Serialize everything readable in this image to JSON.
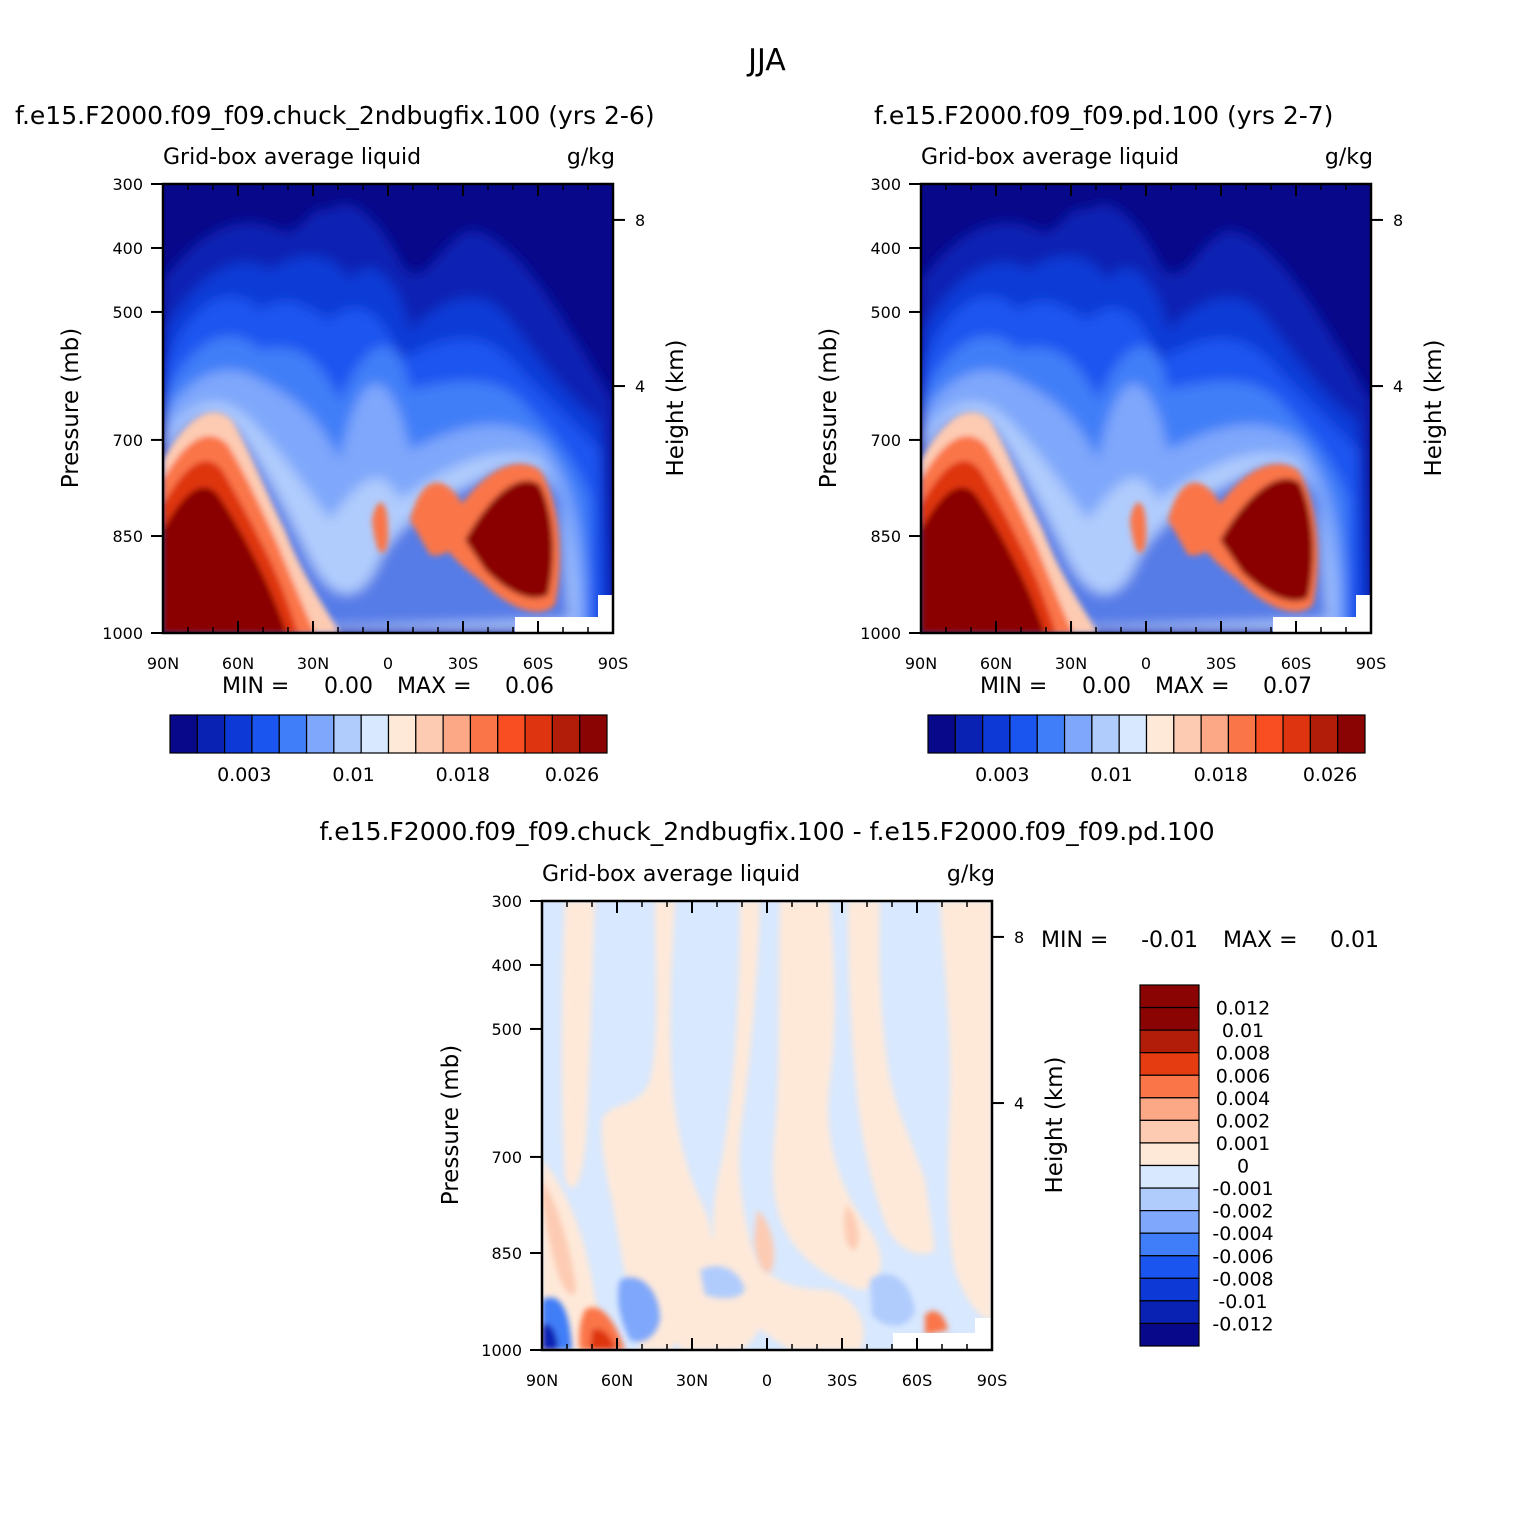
{
  "title": "JJA",
  "colors": {
    "palette12": [
      "#08088a",
      "#0a22b4",
      "#0d3ad6",
      "#1b55f0",
      "#3f7ef8",
      "#7fa7fb",
      "#b0ccfd",
      "#d8e8fe",
      "#fee9d9",
      "#fdcbb2",
      "#fca785",
      "#fa7649",
      "#f84e22",
      "#de3410",
      "#b11d08",
      "#8a0404"
    ],
    "diff": [
      "#08088a",
      "#0a22b4",
      "#0d3ad6",
      "#1b55f0",
      "#3f7ef8",
      "#7fa7fb",
      "#b0ccfd",
      "#d8e8fe",
      "#fee9d9",
      "#fdcbb2",
      "#fca785",
      "#fa7649",
      "#e63c12",
      "#b11d08",
      "#8a0404"
    ]
  },
  "chart_data": [
    {
      "type": "heatmap",
      "title": "f.e15.F2000.f09_f09.chuck_2ndbugfix.100 (yrs 2-6)",
      "subtitle_left": "Grid-box average liquid",
      "subtitle_right": "g/kg",
      "ylabel": "Pressure (mb)",
      "ylabel_right": "Height (km)",
      "x_ticks": [
        "90N",
        "60N",
        "30N",
        "0",
        "30S",
        "60S",
        "90S"
      ],
      "y_ticks": [
        "300",
        "400",
        "500",
        "700",
        "850",
        "1000"
      ],
      "y_ticks_right": [
        "8",
        "4"
      ],
      "stats": {
        "min_label": "MIN =",
        "min": "0.00",
        "max_label": "MAX =",
        "max": "0.06"
      },
      "colorbar_labels": [
        "0.003",
        "0.01",
        "0.018",
        "0.026"
      ],
      "xlim": [
        90,
        -90
      ],
      "ylim": [
        300,
        1000
      ]
    },
    {
      "type": "heatmap",
      "title": "f.e15.F2000.f09_f09.pd.100 (yrs 2-7)",
      "subtitle_left": "Grid-box average liquid",
      "subtitle_right": "g/kg",
      "ylabel": "Pressure (mb)",
      "ylabel_right": "Height (km)",
      "x_ticks": [
        "90N",
        "60N",
        "30N",
        "0",
        "30S",
        "60S",
        "90S"
      ],
      "y_ticks": [
        "300",
        "400",
        "500",
        "700",
        "850",
        "1000"
      ],
      "y_ticks_right": [
        "8",
        "4"
      ],
      "stats": {
        "min_label": "MIN =",
        "min": "0.00",
        "max_label": "MAX =",
        "max": "0.07"
      },
      "colorbar_labels": [
        "0.003",
        "0.01",
        "0.018",
        "0.026"
      ],
      "xlim": [
        90,
        -90
      ],
      "ylim": [
        300,
        1000
      ]
    },
    {
      "type": "heatmap",
      "title": "f.e15.F2000.f09_f09.chuck_2ndbugfix.100 - f.e15.F2000.f09_f09.pd.100",
      "subtitle_left": "Grid-box average liquid",
      "subtitle_right": "g/kg",
      "ylabel": "Pressure (mb)",
      "ylabel_right": "Height (km)",
      "x_ticks": [
        "90N",
        "60N",
        "30N",
        "0",
        "30S",
        "60S",
        "90S"
      ],
      "y_ticks": [
        "300",
        "400",
        "500",
        "700",
        "850",
        "1000"
      ],
      "y_ticks_right": [
        "8",
        "4"
      ],
      "stats": {
        "min_label": "MIN =",
        "min": "-0.01",
        "max_label": "MAX =",
        "max": "0.01"
      },
      "colorbar_labels": [
        "0.012",
        "0.01",
        "0.008",
        "0.006",
        "0.004",
        "0.002",
        "0.001",
        "0",
        "-0.001",
        "-0.002",
        "-0.004",
        "-0.006",
        "-0.008",
        "-0.01",
        "-0.012"
      ],
      "xlim": [
        90,
        -90
      ],
      "ylim": [
        300,
        1000
      ]
    }
  ]
}
